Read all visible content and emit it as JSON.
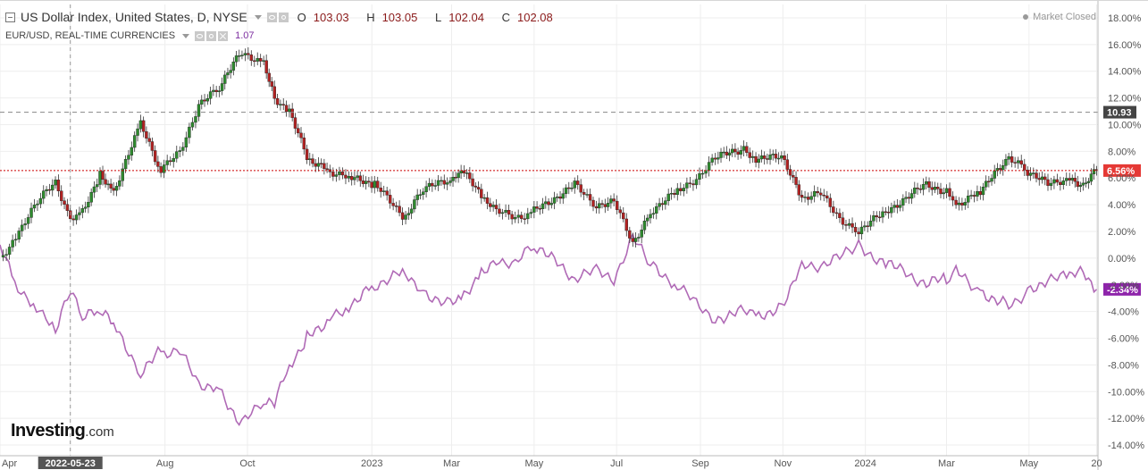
{
  "chart_title": {
    "label": "US Dollar Index, United States, D, NYSE",
    "open_label": "O",
    "open": "103.03",
    "high_label": "H",
    "high": "103.05",
    "low_label": "L",
    "low": "102.04",
    "close_label": "C",
    "close": "102.08"
  },
  "comparison": {
    "label": "EUR/USD, REAL-TIME CURRENCIES",
    "value": "1.07"
  },
  "market_status": "Market Closed",
  "logo": {
    "main": "Investing",
    "suffix": ".com"
  },
  "colors": {
    "up_candle": "#2e8b2e",
    "down_candle": "#b22222",
    "comparison_line": "#b06ab6",
    "current_price_line": "#cc0000",
    "current_price_tag": "#e53935",
    "comparison_tag": "#8e24aa",
    "dashed_level_tag": "#444444"
  },
  "chart_data": {
    "type": "line",
    "ylabel": "",
    "y_unit": "%",
    "ylim": [
      -14.8,
      19.0
    ],
    "y_ticks": [
      18,
      16,
      14,
      12,
      10,
      8,
      6,
      4,
      2,
      0,
      -2,
      -4,
      -6,
      -8,
      -10,
      -12,
      -14
    ],
    "y_tick_labels": [
      "18.00%",
      "16.00%",
      "14.00%",
      "12.00%",
      "10.00%",
      "8.00%",
      "6.00%",
      "4.00%",
      "2.00%",
      "0.00%",
      "-2.00%",
      "-4.00%",
      "-6.00%",
      "-8.00%",
      "-10.00%",
      "-12.00%",
      "-14.00%"
    ],
    "xlim": [
      "2022-04-01",
      "2024-06-21"
    ],
    "x_ticks": [
      {
        "date": "2022-04-01",
        "label": "Apr"
      },
      {
        "date": "2022-05-23",
        "label": "2022-05-23",
        "highlight": true
      },
      {
        "date": "2022-08-01",
        "label": "Aug"
      },
      {
        "date": "2022-10-01",
        "label": "Oct"
      },
      {
        "date": "2023-01-01",
        "label": "2023"
      },
      {
        "date": "2023-03-01",
        "label": "Mar"
      },
      {
        "date": "2023-05-01",
        "label": "May"
      },
      {
        "date": "2023-07-01",
        "label": "Jul"
      },
      {
        "date": "2023-09-01",
        "label": "Sep"
      },
      {
        "date": "2023-11-01",
        "label": "Nov"
      },
      {
        "date": "2024-01-01",
        "label": "2024"
      },
      {
        "date": "2024-03-01",
        "label": "Mar"
      },
      {
        "date": "2024-05-01",
        "label": "May"
      },
      {
        "date": "2024-06-20",
        "label": "20"
      }
    ],
    "crosshair_date": "2022-05-23",
    "horizontal_level": {
      "value": 10.93,
      "label": "10.93"
    },
    "last_value_tags": [
      {
        "series": "US Dollar Index",
        "value": 6.56,
        "label": "6.56%"
      },
      {
        "series": "EUR/USD",
        "value": -2.34,
        "label": "-2.34%"
      }
    ],
    "series": [
      {
        "name": "US Dollar Index",
        "style": "candlestick",
        "x": [
          "2022-04-01",
          "2022-04-15",
          "2022-05-01",
          "2022-05-12",
          "2022-05-23",
          "2022-06-01",
          "2022-06-14",
          "2022-06-24",
          "2022-07-14",
          "2022-07-29",
          "2022-08-12",
          "2022-08-26",
          "2022-09-08",
          "2022-09-27",
          "2022-10-13",
          "2022-10-21",
          "2022-11-01",
          "2022-11-14",
          "2022-12-01",
          "2022-12-15",
          "2023-01-03",
          "2023-01-26",
          "2023-02-08",
          "2023-02-28",
          "2023-03-08",
          "2023-03-23",
          "2023-04-03",
          "2023-04-17",
          "2023-05-01",
          "2023-05-31",
          "2023-06-16",
          "2023-06-29",
          "2023-07-13",
          "2023-07-26",
          "2023-08-15",
          "2023-08-29",
          "2023-09-12",
          "2023-10-03",
          "2023-10-12",
          "2023-10-31",
          "2023-11-15",
          "2023-11-29",
          "2023-12-13",
          "2023-12-27",
          "2024-01-16",
          "2024-01-31",
          "2024-02-15",
          "2024-03-01",
          "2024-03-08",
          "2024-03-26",
          "2024-04-16",
          "2024-04-30",
          "2024-05-15",
          "2024-05-31",
          "2024-06-10",
          "2024-06-20"
        ],
        "values": [
          -0.2,
          2.0,
          4.5,
          5.6,
          3.0,
          3.5,
          6.3,
          5.0,
          10.0,
          6.5,
          8.0,
          11.5,
          12.5,
          15.5,
          14.5,
          12.0,
          11.0,
          7.5,
          6.5,
          6.0,
          5.5,
          3.0,
          5.2,
          5.8,
          6.8,
          4.5,
          3.5,
          3.0,
          3.5,
          5.5,
          4.0,
          4.2,
          1.1,
          3.5,
          5.0,
          6.0,
          7.5,
          8.2,
          7.5,
          7.5,
          4.5,
          4.8,
          3.0,
          2.0,
          3.5,
          4.5,
          5.5,
          5.0,
          4.0,
          5.0,
          7.5,
          6.5,
          5.5,
          6.0,
          5.5,
          6.56
        ]
      },
      {
        "name": "EUR/USD",
        "style": "line",
        "x": [
          "2022-04-01",
          "2022-04-12",
          "2022-04-28",
          "2022-05-12",
          "2022-05-23",
          "2022-06-01",
          "2022-06-14",
          "2022-06-24",
          "2022-07-14",
          "2022-07-29",
          "2022-08-12",
          "2022-08-26",
          "2022-09-08",
          "2022-09-27",
          "2022-10-13",
          "2022-10-21",
          "2022-11-01",
          "2022-11-14",
          "2022-12-01",
          "2022-12-15",
          "2023-01-03",
          "2023-01-26",
          "2023-02-08",
          "2023-02-28",
          "2023-03-08",
          "2023-03-23",
          "2023-04-03",
          "2023-04-17",
          "2023-05-01",
          "2023-05-31",
          "2023-06-16",
          "2023-06-29",
          "2023-07-13",
          "2023-07-26",
          "2023-08-15",
          "2023-08-29",
          "2023-09-12",
          "2023-10-03",
          "2023-10-12",
          "2023-10-31",
          "2023-11-15",
          "2023-11-29",
          "2023-12-13",
          "2023-12-27",
          "2024-01-16",
          "2024-01-31",
          "2024-02-15",
          "2024-03-01",
          "2024-03-08",
          "2024-03-26",
          "2024-04-16",
          "2024-04-30",
          "2024-05-15",
          "2024-05-31",
          "2024-06-10",
          "2024-06-20"
        ],
        "values": [
          1.0,
          -2.0,
          -3.5,
          -5.5,
          -2.5,
          -4.5,
          -4.0,
          -5.0,
          -8.5,
          -7.0,
          -7.0,
          -9.5,
          -9.5,
          -12.5,
          -10.5,
          -11.0,
          -8.0,
          -6.0,
          -4.5,
          -3.5,
          -2.0,
          -1.0,
          -2.5,
          -3.5,
          -3.0,
          -1.0,
          0.0,
          -0.5,
          1.0,
          -1.5,
          -1.0,
          -1.5,
          1.5,
          -0.5,
          -2.0,
          -3.5,
          -4.5,
          -4.0,
          -4.5,
          -3.5,
          -0.5,
          -0.5,
          0.0,
          1.0,
          -0.5,
          -1.0,
          -2.0,
          -1.5,
          -1.0,
          -2.5,
          -3.5,
          -2.5,
          -1.5,
          -1.5,
          -1.0,
          -2.34
        ]
      }
    ]
  }
}
